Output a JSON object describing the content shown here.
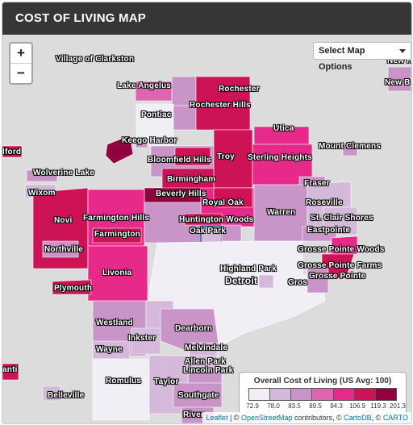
{
  "header": {
    "title": "COST OF LIVING MAP"
  },
  "controls": {
    "zoom_in": "+",
    "zoom_out": "−",
    "options_label": "Select Map Options"
  },
  "colors": {
    "c1": "#f1eef6",
    "c2": "#d4b9da",
    "c3": "#c994c7",
    "c4": "#df65b0",
    "c5": "#e7298a",
    "c6": "#ce1256",
    "c7": "#91003f",
    "basemap": "#dcdcdc",
    "highlight": "#2c7fb8"
  },
  "legend": {
    "title": "Overall Cost of Living (US Avg: 100)",
    "breaks": [
      "72.9",
      "78.0",
      "83.5",
      "89.5",
      "94.3",
      "106.9",
      "119.3",
      "201.3"
    ]
  },
  "places": [
    "Village of Clarkston",
    "Lake Angelus",
    "Rochester",
    "Pontiac",
    "Rochester Hills",
    "Keego Harbor",
    "Utica",
    "Mount Clemens",
    "lford",
    "Bloomfield Hills",
    "Troy",
    "Sterling Heights",
    "Wolverine Lake",
    "Birmingham",
    "Fraser",
    "Wixom",
    "Beverly Hills",
    "Royal Oak",
    "Roseville",
    "Novi",
    "Farmington Hills",
    "Huntington Woods",
    "Warren",
    "St. Clair Shores",
    "Farmington",
    "Oak Park",
    "Eastpointe",
    "Northville",
    "Grosse Pointe Woods",
    "Highland Park",
    "Grosse Pointe Farms",
    "Detroit",
    "Gros",
    "Grosse Pointe",
    "Plymouth",
    "Livonia",
    "Westland",
    "Dearborn",
    "Inkster",
    "Melvindale",
    "Wayne",
    "Allen Park",
    "Lincoln Park",
    "Romulus",
    "Taylor",
    "anti",
    "Southgate",
    "Belleville",
    "River",
    "New Haven",
    "New B"
  ],
  "attribution": {
    "leaflet": "Leaflet",
    "sep1": " | © ",
    "osm": "OpenStreetMap",
    "mid": " contributors, © ",
    "cartodb": "CartoDB",
    "sep2": ", © ",
    "carto": "CARTO"
  }
}
